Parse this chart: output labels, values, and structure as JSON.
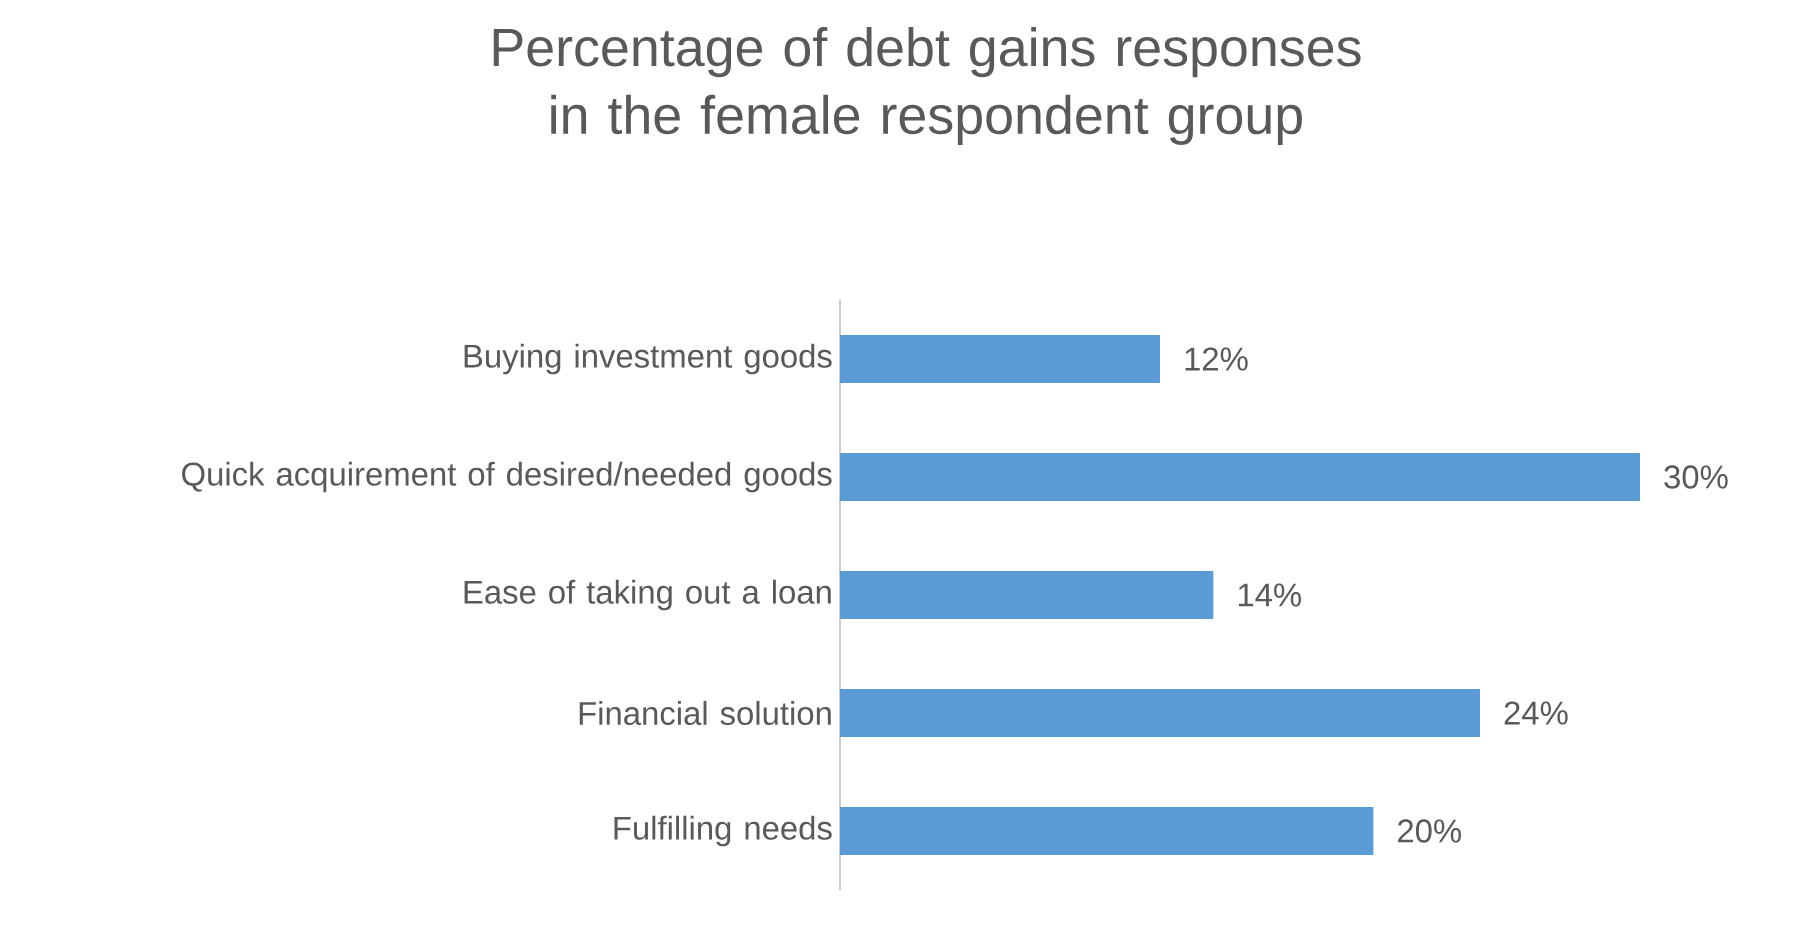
{
  "chart_data": {
    "type": "bar",
    "orientation": "horizontal",
    "title": "Percentage of debt gains responses in the female respondent group",
    "categories": [
      "Buying investment goods",
      "Quick acquirement of desired/needed goods",
      "Ease of taking out a loan",
      "Financial solution",
      "Fulfilling needs"
    ],
    "values": [
      12,
      30,
      14,
      24,
      20
    ],
    "value_labels": [
      "12%",
      "30%",
      "14%",
      "24%",
      "20%"
    ],
    "color": "#5b9bd5"
  }
}
